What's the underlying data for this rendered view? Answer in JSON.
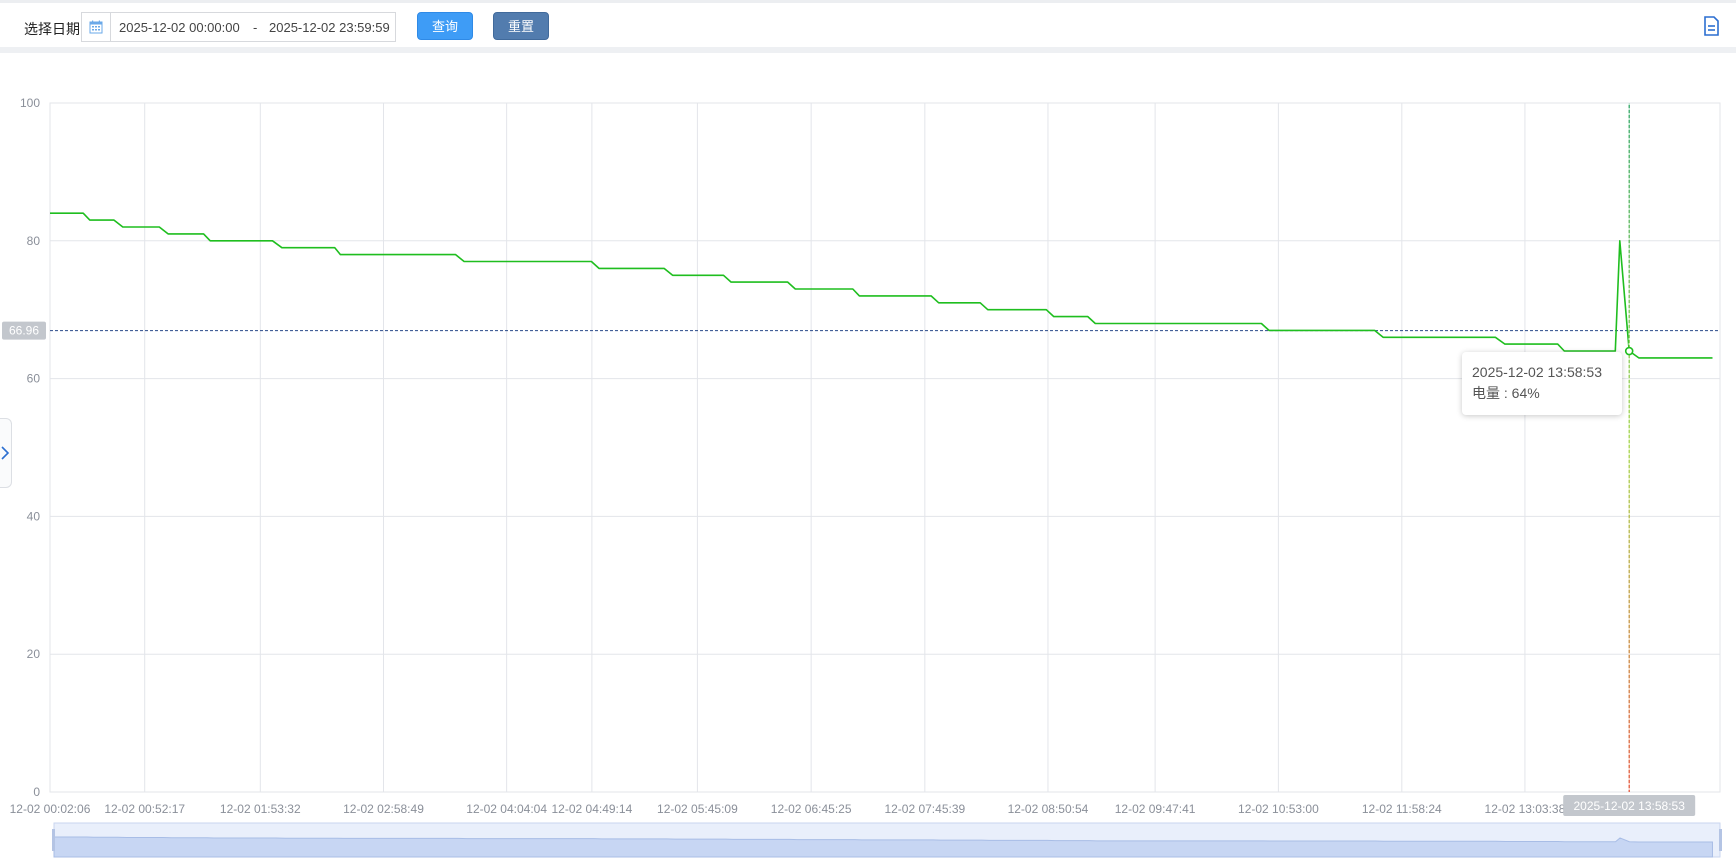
{
  "filter": {
    "date_label": "选择日期",
    "start": "2025-12-02 00:00:00",
    "separator": "-",
    "end": "2025-12-02 23:59:59"
  },
  "buttons": {
    "query": "查询",
    "reset": "重置"
  },
  "icons": {
    "calendar": "calendar-icon",
    "document": "document-icon",
    "expand": "chevron-right-icon"
  },
  "colors": {
    "series": "#1fbe1f",
    "mark_line": "#2a4a8a",
    "pointer": "#e3472a",
    "query": "#3e9cf6",
    "reset": "#527cae"
  },
  "tooltip": {
    "time": "2025-12-02 13:58:53",
    "series_label": "电量",
    "sep": " : ",
    "value_text": "64%"
  },
  "chart_data": {
    "type": "line",
    "ylim": [
      0,
      100
    ],
    "y_ticks": [
      0,
      20,
      40,
      60,
      80,
      100
    ],
    "x_tick_labels": [
      "12-02 00:02:06",
      "12-02 00:52:17",
      "12-02 01:53:32",
      "12-02 02:58:49",
      "12-02 04:04:04",
      "12-02 04:49:14",
      "12-02 05:45:09",
      "12-02 06:45:25",
      "12-02 07:45:39",
      "12-02 08:50:54",
      "12-02 09:47:41",
      "12-02 10:53:00",
      "12-02 11:58:24",
      "12-02 13:03:38"
    ],
    "x_range": [
      "2025-12-02 00:02:06",
      "2025-12-02 14:47:00"
    ],
    "grid": true,
    "mark_line": {
      "value": 66.96,
      "label": "66.96"
    },
    "axis_pointer": {
      "x": "2025-12-02 13:58:53",
      "label": "2025-12-02 13:58:53"
    },
    "highlight_point": {
      "x": "2025-12-02 13:58:53",
      "y": 64
    },
    "series": [
      {
        "name": "电量",
        "x": [
          "2025-12-02 00:02:06",
          "2025-12-02 00:19:40",
          "2025-12-02 00:23:10",
          "2025-12-02 00:36:00",
          "2025-12-02 00:40:40",
          "2025-12-02 01:00:00",
          "2025-12-02 01:04:40",
          "2025-12-02 01:23:30",
          "2025-12-02 01:27:00",
          "2025-12-02 02:00:00",
          "2025-12-02 02:05:00",
          "2025-12-02 02:33:00",
          "2025-12-02 02:36:00",
          "2025-12-02 03:37:00",
          "2025-12-02 03:41:30",
          "2025-12-02 04:49:00",
          "2025-12-02 04:53:00",
          "2025-12-02 05:27:30",
          "2025-12-02 05:32:00",
          "2025-12-02 05:59:00",
          "2025-12-02 06:03:00",
          "2025-12-02 06:33:00",
          "2025-12-02 06:37:00",
          "2025-12-02 07:07:30",
          "2025-12-02 07:11:00",
          "2025-12-02 07:49:00",
          "2025-12-02 07:53:00",
          "2025-12-02 08:15:00",
          "2025-12-02 08:19:00",
          "2025-12-02 08:50:00",
          "2025-12-02 08:54:00",
          "2025-12-02 09:12:00",
          "2025-12-02 09:16:00",
          "2025-12-02 10:44:00",
          "2025-12-02 10:48:00",
          "2025-12-02 11:44:00",
          "2025-12-02 11:48:30",
          "2025-12-02 12:48:00",
          "2025-12-02 12:53:00",
          "2025-12-02 13:21:00",
          "2025-12-02 13:24:30",
          "2025-12-02 13:33:00",
          "2025-12-02 13:51:30",
          "2025-12-02 13:53:53",
          "2025-12-02 13:58:53",
          "2025-12-02 14:04:00",
          "2025-12-02 14:43:00"
        ],
        "y": [
          84,
          84,
          83,
          83,
          82,
          82,
          81,
          81,
          80,
          80,
          79,
          79,
          78,
          78,
          77,
          77,
          76,
          76,
          75,
          75,
          74,
          74,
          73,
          73,
          72,
          72,
          71,
          71,
          70,
          70,
          69,
          69,
          68,
          68,
          67,
          67,
          66,
          66,
          65,
          65,
          64,
          64,
          64,
          80,
          64,
          63,
          63
        ]
      }
    ]
  }
}
